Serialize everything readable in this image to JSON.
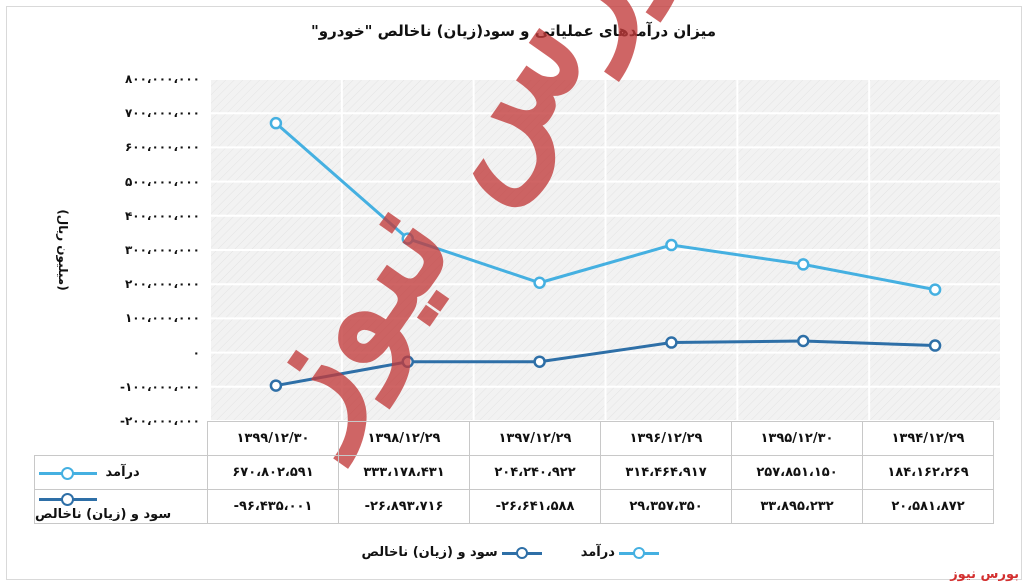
{
  "chart_data": {
    "type": "line",
    "title": "میزان درآمدهای عملیاتی و سود(زیان) ناخالص \"خودرو\"",
    "ylabel": "(میلیون ریال)",
    "categories": [
      "۱۳۹۴/۱۲/۲۹",
      "۱۳۹۵/۱۲/۳۰",
      "۱۳۹۶/۱۲/۲۹",
      "۱۳۹۷/۱۲/۲۹",
      "۱۳۹۸/۱۲/۲۹",
      "۱۳۹۹/۱۲/۳۰"
    ],
    "series": [
      {
        "name": "درآمد",
        "color": "#45b0e1",
        "values": [
          184162269,
          257851150,
          314464917,
          204240922,
          333178431,
          670802591
        ],
        "labels": [
          "۱۸۴،۱۶۲،۲۶۹",
          "۲۵۷،۸۵۱،۱۵۰",
          "۳۱۴،۴۶۴،۹۱۷",
          "۲۰۴،۲۴۰،۹۲۲",
          "۳۳۳،۱۷۸،۴۳۱",
          "۶۷۰،۸۰۲،۵۹۱"
        ]
      },
      {
        "name": "سود و (زیان) ناخالص",
        "color": "#2e6fa7",
        "values": [
          20581872,
          33895232,
          29357350,
          -26641588,
          -26893716,
          -96435001
        ],
        "labels": [
          "۲۰،۵۸۱،۸۷۲",
          "۳۳،۸۹۵،۲۳۲",
          "۲۹،۳۵۷،۳۵۰",
          "-۲۶،۶۴۱،۵۸۸",
          "-۲۶،۸۹۳،۷۱۶",
          "-۹۶،۴۳۵،۰۰۱"
        ]
      }
    ],
    "ylim": [
      -200000000,
      800000000
    ],
    "yticks": [
      800000000,
      700000000,
      600000000,
      500000000,
      400000000,
      300000000,
      200000000,
      100000000,
      0,
      -100000000,
      -200000000
    ],
    "ytick_labels": [
      "۸۰۰،۰۰۰،۰۰۰",
      "۷۰۰،۰۰۰،۰۰۰",
      "۶۰۰،۰۰۰،۰۰۰",
      "۵۰۰،۰۰۰،۰۰۰",
      "۴۰۰،۰۰۰،۰۰۰",
      "۳۰۰،۰۰۰،۰۰۰",
      "۲۰۰،۰۰۰،۰۰۰",
      "۱۰۰،۰۰۰،۰۰۰",
      "۰",
      "-۱۰۰،۰۰۰،۰۰۰",
      "-۲۰۰،۰۰۰،۰۰۰"
    ],
    "grid": true,
    "legend_position": "bottom",
    "data_table": true
  },
  "watermark": "بورس نیوز",
  "brand": "بورس نیوز"
}
